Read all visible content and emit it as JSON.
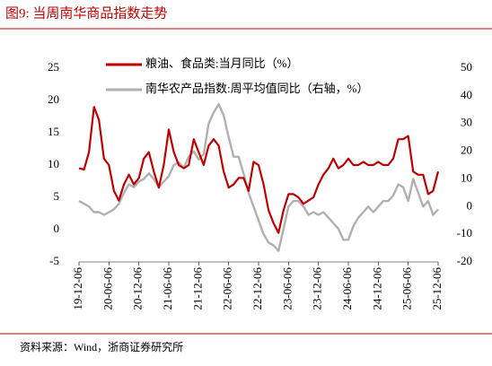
{
  "chart_data": {
    "type": "line",
    "title": "图9:  当周南华商品指数走势",
    "source": "资料来源：Wind，浙商证券研究所",
    "categories": [
      "19-12-06",
      null,
      null,
      null,
      null,
      null,
      "20-06-06",
      null,
      null,
      null,
      null,
      null,
      "20-12-06",
      null,
      null,
      null,
      null,
      null,
      "21-06-06",
      null,
      null,
      null,
      null,
      null,
      "21-12-06",
      null,
      null,
      null,
      null,
      null,
      "22-06-06",
      null,
      null,
      null,
      null,
      null,
      "22-12-06",
      null,
      null,
      null,
      null,
      null,
      "23-06-06",
      null,
      null,
      null,
      null,
      null,
      "23-12-06",
      null,
      null,
      null,
      null,
      null,
      "24-06-06",
      null,
      null,
      null,
      null,
      null,
      "24-12-06",
      null,
      null,
      null,
      null,
      null,
      "25-06-06",
      null,
      null,
      null,
      null,
      null,
      "25-12-06"
    ],
    "series": [
      {
        "name": "粮油、食品类:当月同比（%）",
        "color": "#c00000",
        "values": [
          9.5,
          9.3,
          12,
          19,
          17,
          11,
          10,
          6,
          4.5,
          7,
          8.5,
          7,
          8,
          11,
          12,
          9,
          6.5,
          10,
          15.5,
          12,
          10,
          9.5,
          10,
          14,
          12,
          10,
          13,
          14,
          13,
          9,
          6.5,
          7,
          8,
          8,
          6,
          10.5,
          10,
          7,
          3,
          1,
          -0.5,
          3,
          5.5,
          5.5,
          5,
          4,
          4.5,
          5,
          7,
          8.5,
          9.5,
          11,
          9.5,
          10,
          11,
          10,
          10,
          10.5,
          10,
          10,
          10.5,
          10,
          10,
          11,
          14,
          14,
          14.5,
          9,
          8.5,
          8.5,
          5.5,
          6,
          9
        ]
      },
      {
        "name": "南华农产品指数:周平均值同比（右轴，%）",
        "color": "#b0b0b0",
        "axis": "y2",
        "values": [
          2,
          1,
          0,
          -2,
          -2,
          -3,
          -2,
          -1,
          1,
          5,
          8,
          7,
          9,
          10,
          12,
          10,
          7,
          9,
          11,
          15,
          16,
          14,
          18,
          20,
          17,
          19,
          30,
          34,
          37,
          33,
          25,
          18,
          18,
          12,
          5,
          0,
          -5,
          -10,
          -13,
          -14,
          -16,
          -8,
          0,
          2,
          2,
          0,
          -3,
          -2,
          -3,
          -2,
          -4,
          -6,
          -8,
          -12,
          -12,
          -7,
          -4,
          -2,
          0,
          -2,
          0,
          2,
          2,
          4,
          8,
          7,
          2,
          10,
          5,
          0,
          2,
          -3,
          -1
        ]
      }
    ],
    "ylim": [
      -5,
      25
    ],
    "yticks": [
      -5,
      0,
      5,
      10,
      15,
      20,
      25
    ],
    "y2lim": [
      -20,
      50
    ],
    "y2ticks": [
      -20,
      -10,
      0,
      10,
      20,
      30,
      40,
      50
    ],
    "legend": "top"
  }
}
